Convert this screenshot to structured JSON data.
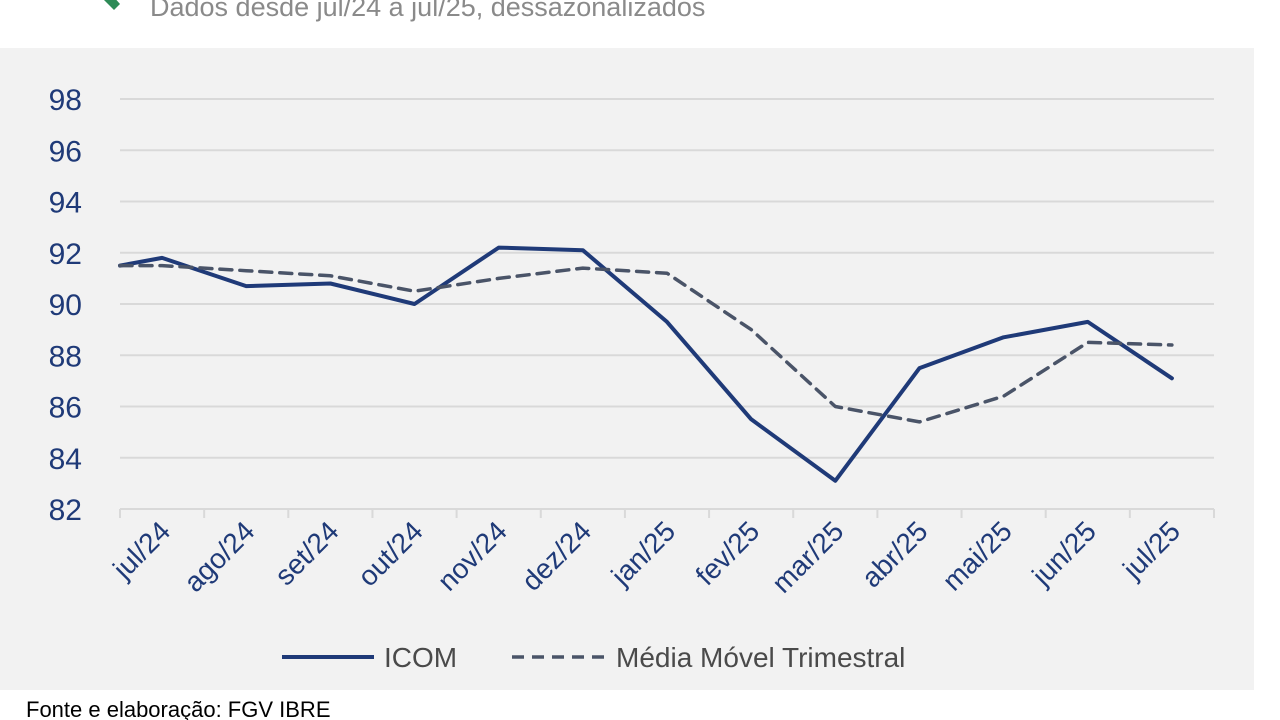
{
  "header": {
    "subtitle": "Dados desde jul/24 a jul/25, dessazonalizados",
    "logo_icon": "fgv-green-chevron-icon",
    "logo_color": "#2e8b57"
  },
  "chart_data": {
    "type": "line",
    "categories": [
      "jul/24",
      "ago/24",
      "set/24",
      "out/24",
      "nov/24",
      "dez/24",
      "jan/25",
      "fev/25",
      "mar/25",
      "abr/25",
      "mai/25",
      "jun/25",
      "jul/25"
    ],
    "x": [
      0,
      0.5,
      1.5,
      2.5,
      3.5,
      4.5,
      5.5,
      6.5,
      7.5,
      8.5,
      9.5,
      10.5,
      11.5,
      12.5
    ],
    "series": [
      {
        "name": "ICOM",
        "values": [
          91.5,
          91.8,
          90.7,
          90.8,
          90.0,
          92.2,
          92.1,
          89.3,
          85.5,
          83.1,
          87.5,
          88.7,
          89.3,
          87.1
        ],
        "color": "#1f3a78",
        "style": "solid"
      },
      {
        "name": "Média Móvel Trimestral",
        "values": [
          91.5,
          91.5,
          91.3,
          91.1,
          90.5,
          91.0,
          91.4,
          91.2,
          89.0,
          86.0,
          85.4,
          86.4,
          88.5,
          88.4
        ],
        "color": "#4a5468",
        "style": "dashed"
      }
    ],
    "yticks": [
      "98",
      "96",
      "94",
      "92",
      "90",
      "88",
      "86",
      "84",
      "82"
    ],
    "ylim": [
      82,
      98
    ],
    "grid": true,
    "legend_position": "bottom",
    "tick_color": "#1f3a78"
  },
  "footer": {
    "source": "Fonte e elaboração: FGV IBRE"
  }
}
